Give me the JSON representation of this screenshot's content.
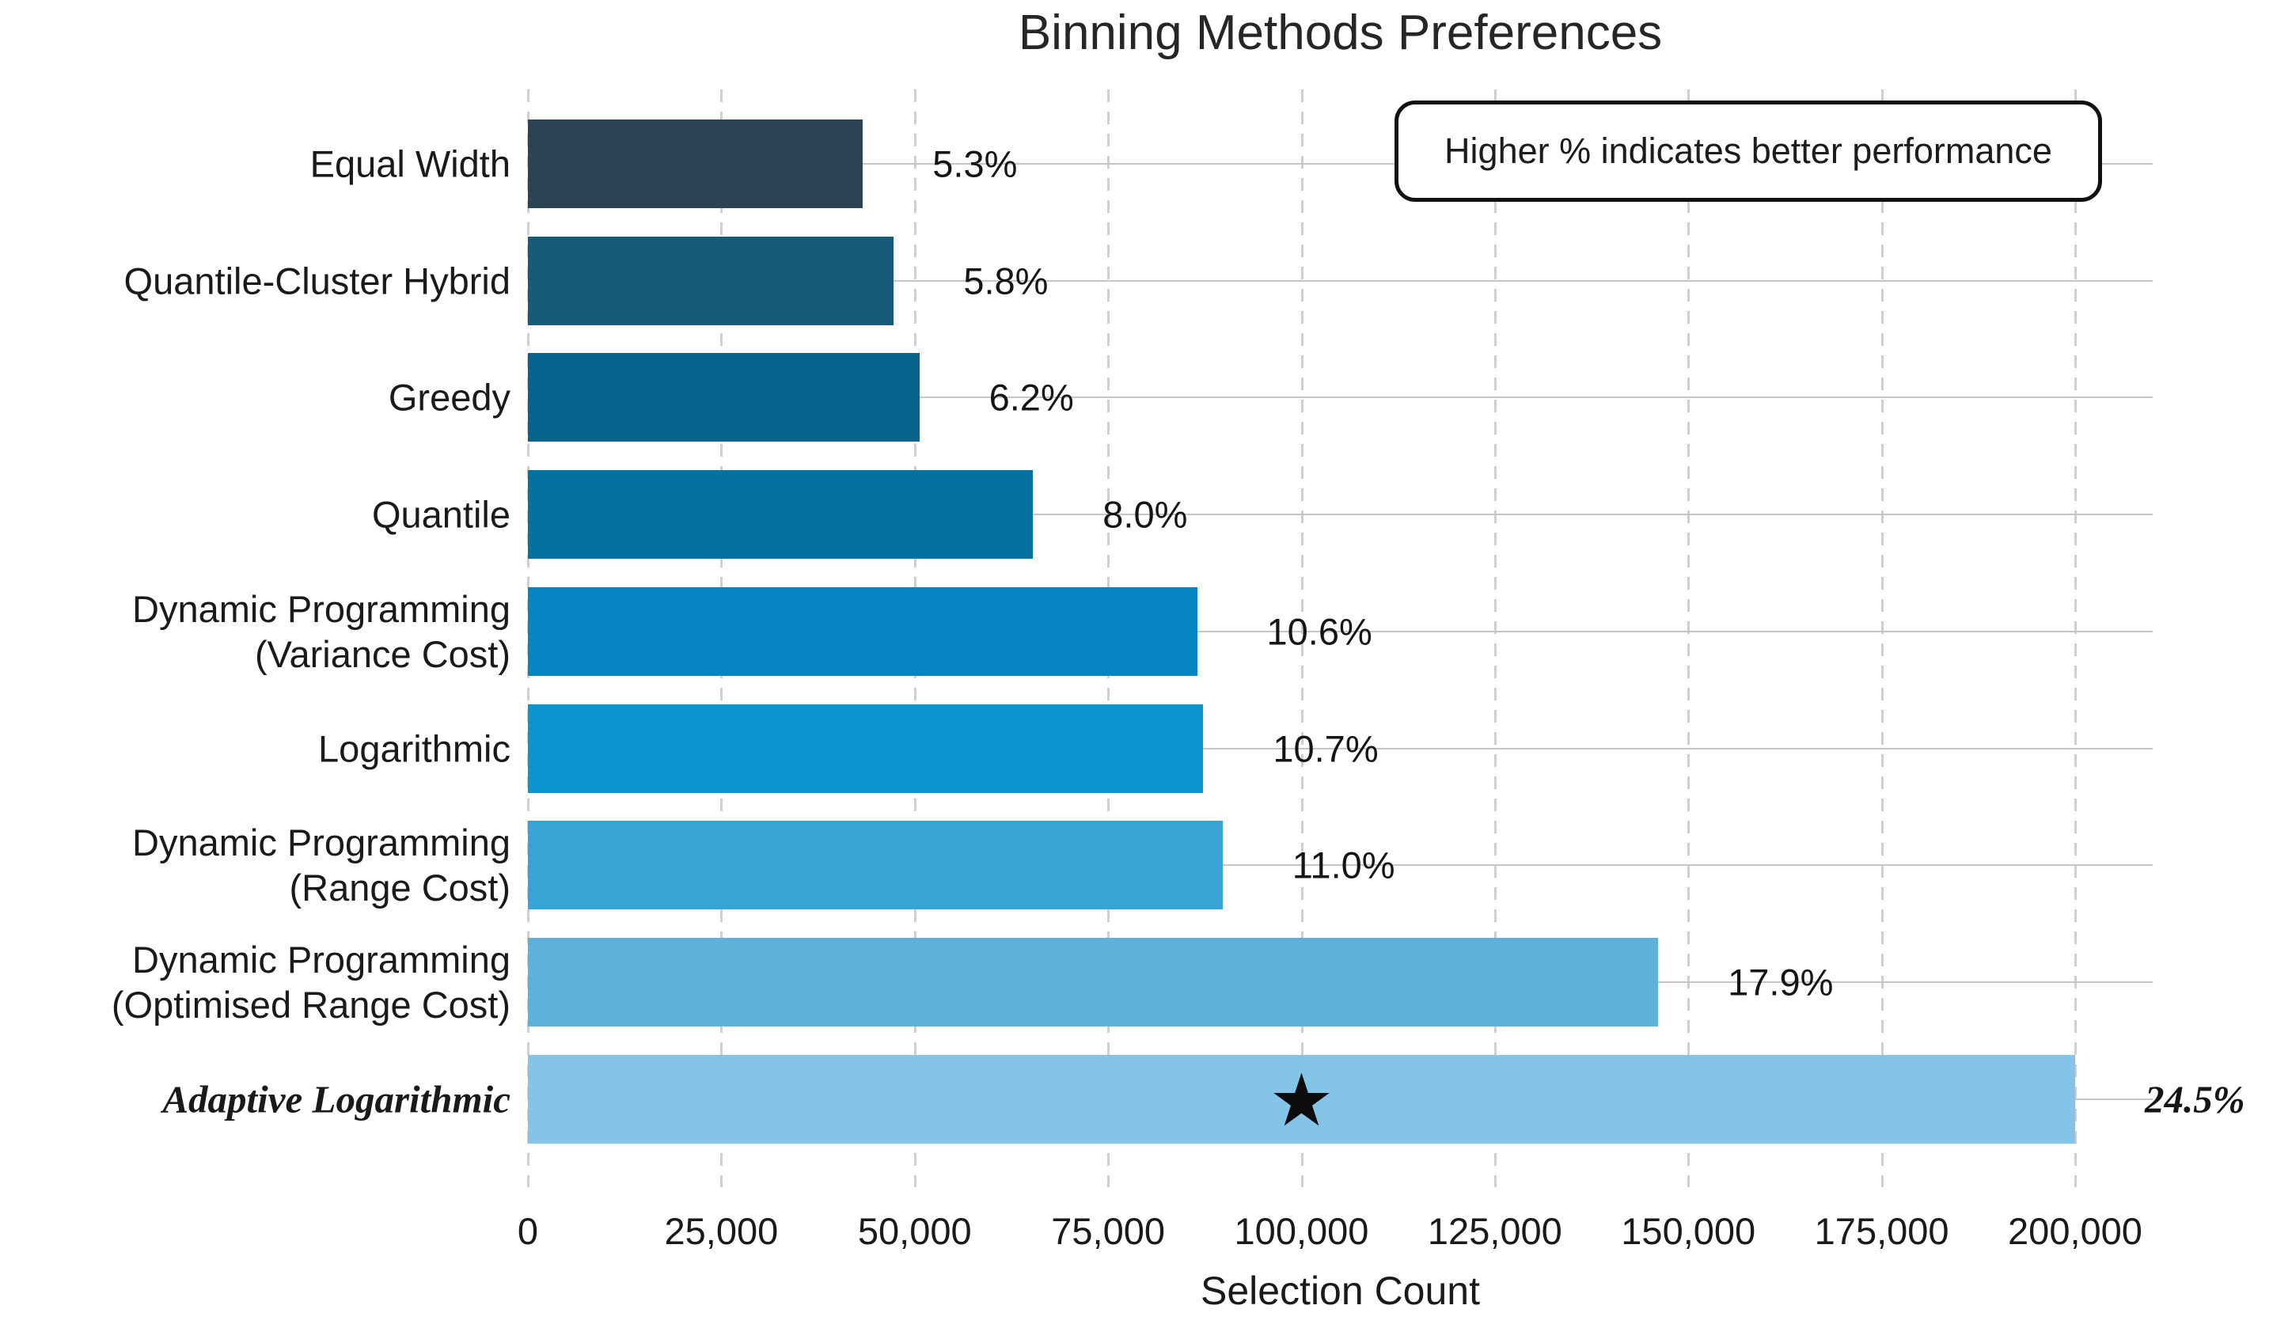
{
  "title": "Binning Methods Preferences",
  "annotation": "Higher % indicates better performance",
  "xlabel": "Selection Count",
  "chart_data": {
    "type": "bar",
    "orientation": "horizontal",
    "title": "Binning Methods Preferences",
    "xlabel": "Selection Count",
    "ylabel": "",
    "categories": [
      "Equal Width",
      "Quantile-Cluster Hybrid",
      "Greedy",
      "Quantile",
      "Dynamic Programming\n(Variance Cost)",
      "Logarithmic",
      "Dynamic Programming\n(Range Cost)",
      "Dynamic Programming\n(Optimised Range Cost)",
      "Adaptive Logarithmic"
    ],
    "values": [
      43300,
      47300,
      50600,
      65300,
      86500,
      87300,
      89800,
      146100,
      200000
    ],
    "pct": [
      5.3,
      5.8,
      6.2,
      8.0,
      10.6,
      10.7,
      11.0,
      17.9,
      24.5
    ],
    "pct_labels": [
      "5.3%",
      "5.8%",
      "6.2%",
      "8.0%",
      "10.6%",
      "10.7%",
      "11.0%",
      "17.9%",
      "24.5%"
    ],
    "colors": [
      "#2b4455",
      "#175a7a",
      "#07648c",
      "#04719f",
      "#0585c1",
      "#0b95ce",
      "#3aa3d6",
      "#5fb1dc",
      "#84c4e6"
    ],
    "xlim": [
      0,
      210000
    ],
    "ticks": [
      0,
      25000,
      50000,
      75000,
      100000,
      125000,
      150000,
      175000,
      200000
    ],
    "grid": {
      "horizontal": "solid",
      "vertical": "dashed"
    },
    "legend": "none",
    "annotation": "Higher % indicates better performance",
    "star_marker": {
      "category": "Adaptive Logarithmic",
      "x": 100000,
      "symbol": "★"
    },
    "emphasized_category": "Adaptive Logarithmic"
  }
}
